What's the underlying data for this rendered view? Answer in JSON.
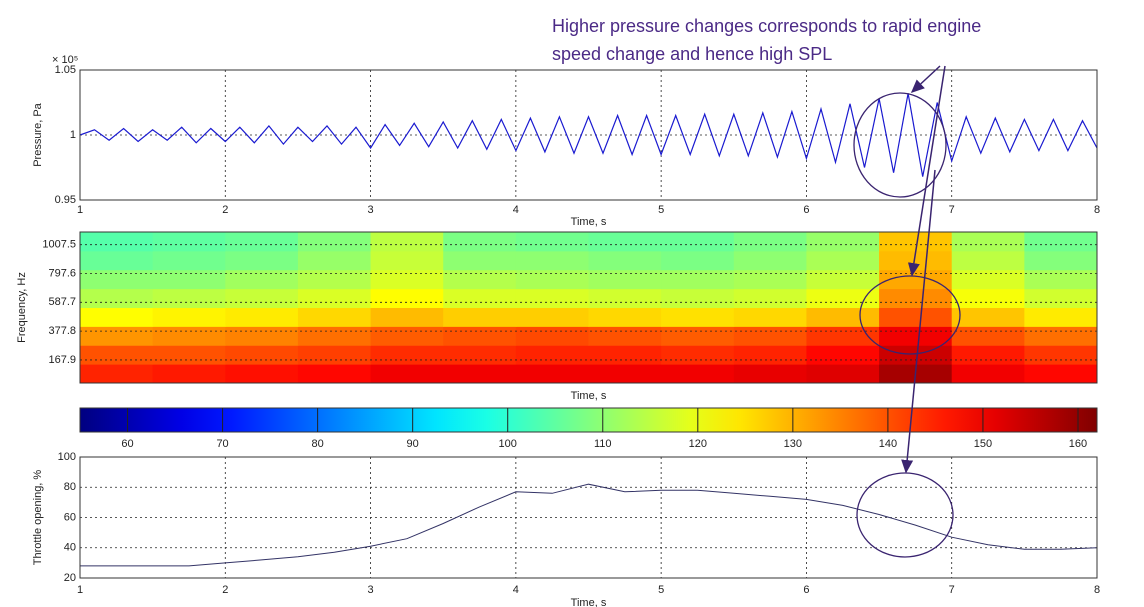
{
  "annotation": [
    "Higher pressure changes corresponds  to rapid engine",
    "speed change and hence high SPL"
  ],
  "chart_data": [
    {
      "type": "line",
      "ylabel": "Pressure, Pa",
      "xlabel": "Time, s",
      "y_multiplier": "× 10⁵",
      "color": "#1a1ad0",
      "grid": true,
      "xlim": [
        1,
        8
      ],
      "xticks": [
        1,
        2,
        3,
        4,
        5,
        6,
        7,
        8
      ],
      "ylim": [
        0.95,
        1.05
      ],
      "yticks": [
        0.95,
        1,
        1.05
      ],
      "x": [
        1.0,
        1.1,
        1.2,
        1.3,
        1.4,
        1.5,
        1.6,
        1.7,
        1.8,
        1.9,
        2.0,
        2.1,
        2.2,
        2.3,
        2.4,
        2.5,
        2.6,
        2.7,
        2.8,
        2.9,
        3.0,
        3.1,
        3.2,
        3.3,
        3.4,
        3.5,
        3.6,
        3.7,
        3.8,
        3.9,
        4.0,
        4.1,
        4.2,
        4.3,
        4.4,
        4.5,
        4.6,
        4.7,
        4.8,
        4.9,
        5.0,
        5.1,
        5.2,
        5.3,
        5.4,
        5.5,
        5.6,
        5.7,
        5.8,
        5.9,
        6.0,
        6.1,
        6.2,
        6.3,
        6.4,
        6.5,
        6.6,
        6.7,
        6.8,
        6.9,
        7.0,
        7.1,
        7.2,
        7.3,
        7.4,
        7.5,
        7.6,
        7.7,
        7.8,
        7.9,
        8.0
      ],
      "values": [
        1.0,
        1.004,
        0.996,
        1.005,
        0.995,
        1.004,
        0.996,
        1.006,
        0.994,
        1.005,
        0.995,
        1.006,
        0.994,
        1.007,
        0.993,
        1.006,
        0.995,
        1.007,
        0.993,
        1.006,
        0.99,
        1.008,
        0.992,
        1.009,
        0.991,
        1.01,
        0.99,
        1.011,
        0.989,
        1.012,
        0.988,
        1.013,
        0.987,
        1.014,
        0.986,
        1.014,
        0.986,
        1.015,
        0.985,
        1.015,
        0.985,
        1.015,
        0.985,
        1.016,
        0.984,
        1.016,
        0.984,
        1.017,
        0.983,
        1.018,
        0.982,
        1.02,
        0.979,
        1.024,
        0.975,
        1.028,
        0.971,
        1.032,
        0.968,
        1.025,
        0.98,
        1.014,
        0.986,
        1.013,
        0.987,
        1.012,
        0.988,
        1.012,
        0.988,
        1.011,
        0.99
      ]
    },
    {
      "type": "heatmap",
      "ylabel": "Frequency, Hz",
      "xlabel": "Time, s",
      "grid": true,
      "xlim": [
        1,
        8
      ],
      "ylim": [
        0,
        1100
      ],
      "yticks": [
        167.9,
        377.8,
        587.7,
        797.6,
        1007.5
      ],
      "z": [
        [
          145,
          146,
          147,
          148,
          150,
          150,
          150,
          150,
          150,
          151,
          152,
          158,
          150,
          148
        ],
        [
          140,
          140,
          141,
          142,
          144,
          144,
          145,
          145,
          144,
          145,
          148,
          154,
          146,
          143
        ],
        [
          133,
          134,
          135,
          137,
          139,
          140,
          141,
          140,
          139,
          140,
          143,
          150,
          140,
          137
        ],
        [
          122,
          123,
          124,
          126,
          129,
          127,
          127,
          126,
          125,
          126,
          129,
          140,
          128,
          124
        ],
        [
          114,
          115,
          116,
          118,
          122,
          118,
          118,
          117,
          116,
          117,
          120,
          134,
          121,
          117
        ],
        [
          110,
          110,
          112,
          114,
          118,
          114,
          113,
          112,
          112,
          113,
          116,
          131,
          118,
          113
        ],
        [
          106,
          107,
          108,
          111,
          116,
          110,
          110,
          109,
          108,
          110,
          113,
          129,
          115,
          109
        ],
        [
          104,
          105,
          106,
          109,
          115,
          108,
          107,
          106,
          106,
          108,
          111,
          128,
          113,
          107
        ]
      ],
      "colorbar": {
        "lim": [
          55,
          162
        ],
        "ticks": [
          60,
          70,
          80,
          90,
          100,
          110,
          120,
          130,
          140,
          150,
          160
        ]
      }
    },
    {
      "type": "line",
      "ylabel": "Throttle opening, %",
      "xlabel": "Time, s",
      "color": "#333366",
      "grid": true,
      "xlim": [
        1,
        8
      ],
      "xticks": [
        1,
        2,
        3,
        4,
        5,
        6,
        7,
        8
      ],
      "ylim": [
        20,
        100
      ],
      "yticks": [
        20,
        40,
        60,
        80,
        100
      ],
      "x": [
        1,
        1.25,
        1.5,
        1.75,
        2,
        2.25,
        2.5,
        2.75,
        3,
        3.25,
        3.5,
        3.75,
        4,
        4.25,
        4.5,
        4.75,
        5,
        5.25,
        5.5,
        5.75,
        6,
        6.25,
        6.5,
        6.75,
        7,
        7.25,
        7.5,
        7.75,
        8
      ],
      "values": [
        28,
        28,
        28,
        28,
        30,
        32,
        34,
        37,
        41,
        46,
        56,
        67,
        77,
        76,
        82,
        77,
        78,
        78,
        76,
        74,
        72,
        68,
        62,
        55,
        47,
        42,
        39,
        39,
        40
      ]
    }
  ]
}
